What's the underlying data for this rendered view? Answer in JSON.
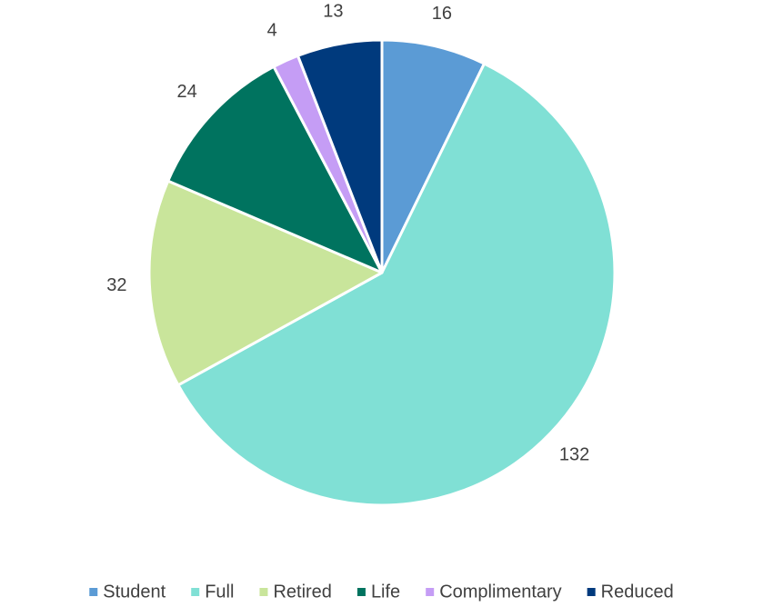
{
  "chart_data": {
    "type": "pie",
    "categories": [
      "Student",
      "Full",
      "Retired",
      "Life",
      "Complimentary",
      "Reduced"
    ],
    "values": [
      16,
      132,
      32,
      24,
      4,
      13
    ],
    "colors": [
      "#5b9bd5",
      "#80e0d5",
      "#c9e59b",
      "#00735f",
      "#c59df5",
      "#003a7d"
    ],
    "legend": "bottom"
  }
}
